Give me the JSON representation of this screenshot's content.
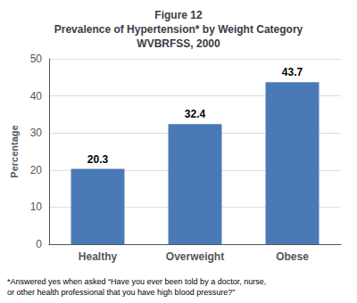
{
  "chart_data": {
    "type": "bar",
    "title": "Figure 12\nPrevalence of Hypertension* by Weight Category\nWVBRFSS, 2000",
    "categories": [
      "Healthy",
      "Overweight",
      "Obese"
    ],
    "values": [
      20.3,
      32.4,
      43.7
    ],
    "color": "#4a7ab5",
    "ylabel": "Percentage",
    "ylim": [
      0,
      50
    ],
    "yticks": [
      0,
      10,
      20,
      30,
      40,
      50
    ],
    "grid": true,
    "data_labels": true,
    "annotations": [
      "*Answered yes when asked “Have you ever been told by a doctor, nurse,",
      "or other health professional that you have high blood pressure?”"
    ]
  }
}
